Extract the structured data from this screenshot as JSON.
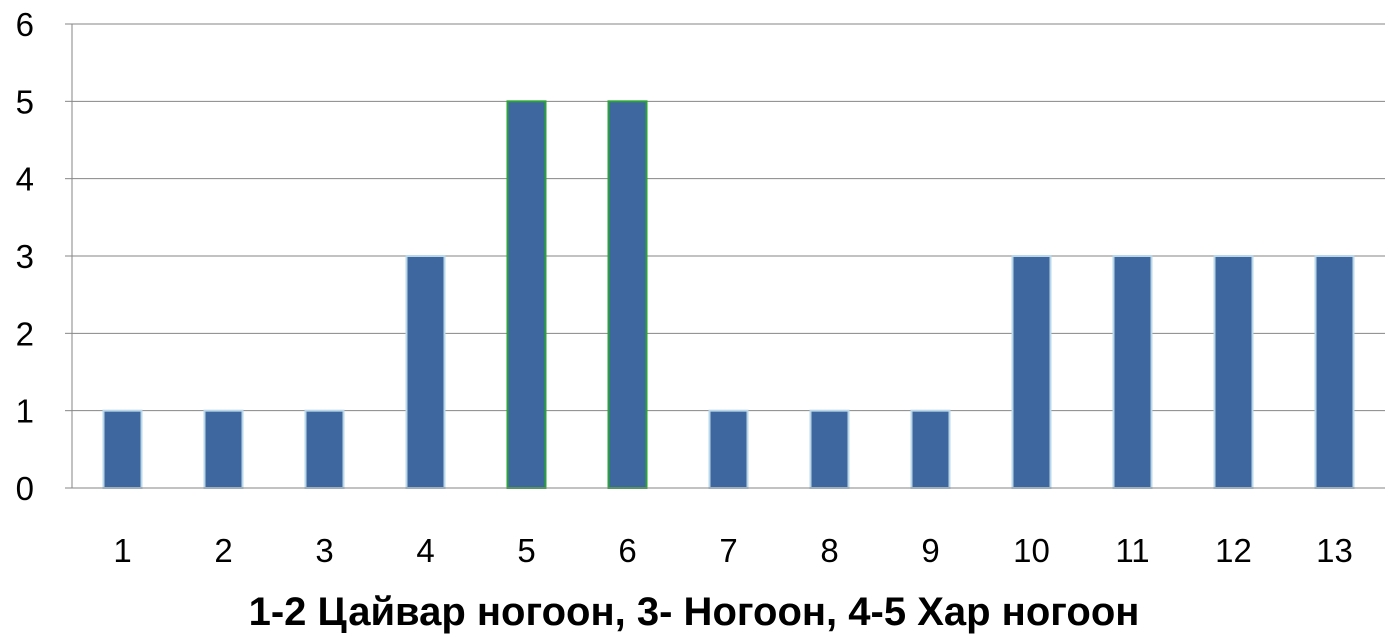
{
  "chart_data": {
    "type": "bar",
    "categories": [
      "1",
      "2",
      "3",
      "4",
      "5",
      "6",
      "7",
      "8",
      "9",
      "10",
      "11",
      "12",
      "13"
    ],
    "values": [
      1,
      1,
      1,
      3,
      5,
      5,
      1,
      1,
      1,
      3,
      3,
      3,
      3
    ],
    "title": "",
    "xlabel": "1-2  Цайвар ногоон, 3- Ногоон, 4-5 Хар ногоон",
    "ylabel": "",
    "ylim": [
      0,
      6
    ],
    "yticks": [
      "0",
      "1",
      "2",
      "3",
      "4",
      "5",
      "6"
    ],
    "grid": true,
    "legend": "none",
    "colors": {
      "bar_fill": "#3E67A0",
      "bar_outline": "#B9D7E8",
      "bar_outline_highlight": "#2CA33A",
      "gridline": "#868686",
      "axis": "#868686"
    },
    "highlighted_categories": [
      "5",
      "6"
    ]
  }
}
